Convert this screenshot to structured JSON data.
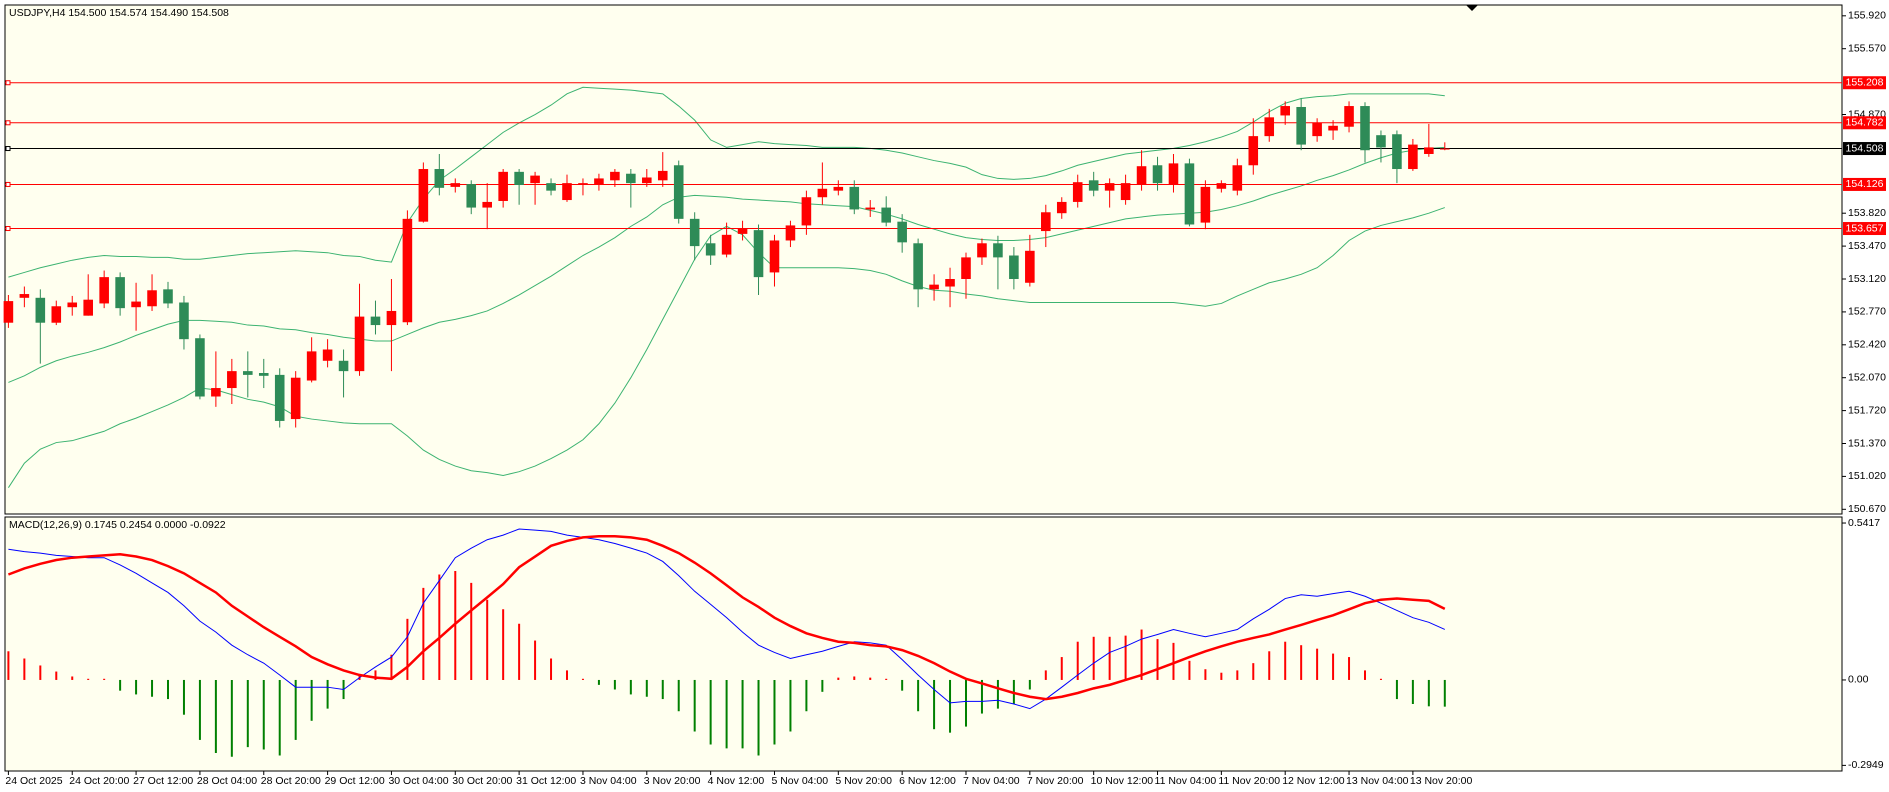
{
  "chart_data": [
    {
      "type": "candlestick",
      "title": "USDJPY,H4  154.500 154.574 154.490 154.508",
      "categories": [
        "24 Oct 2025",
        null,
        null,
        null,
        "24 Oct 20:00",
        null,
        null,
        null,
        "27 Oct 12:00",
        null,
        null,
        null,
        "28 Oct 04:00",
        null,
        null,
        null,
        "28 Oct 20:00",
        null,
        null,
        null,
        "29 Oct 12:00",
        null,
        null,
        null,
        "30 Oct 04:00",
        null,
        null,
        null,
        "30 Oct 20:00",
        null,
        null,
        null,
        "31 Oct 12:00",
        null,
        null,
        null,
        "3 Nov 04:00",
        null,
        null,
        null,
        "3 Nov 20:00",
        null,
        null,
        null,
        "4 Nov 12:00",
        null,
        null,
        null,
        "5 Nov 04:00",
        null,
        null,
        null,
        "5 Nov 20:00",
        null,
        null,
        null,
        "6 Nov 12:00",
        null,
        null,
        null,
        "7 Nov 04:00",
        null,
        null,
        null,
        "7 Nov 20:00",
        null,
        null,
        null,
        "10 Nov 12:00",
        null,
        null,
        null,
        "11 Nov 04:00",
        null,
        null,
        null,
        "11 Nov 20:00",
        null,
        null,
        null,
        "12 Nov 12:00",
        null,
        null,
        null,
        "13 Nov 04:00",
        null,
        null,
        null,
        "13 Nov 20:00",
        null,
        null
      ],
      "open": [
        152.655,
        152.92,
        152.92,
        152.655,
        152.82,
        152.73,
        152.86,
        153.14,
        152.82,
        152.83,
        153.01,
        152.87,
        152.49,
        151.87,
        151.96,
        152.14,
        152.12,
        152.1,
        151.63,
        152.04,
        152.25,
        152.25,
        152.14,
        152.72,
        152.63,
        152.66,
        153.73,
        154.29,
        154.1,
        154.13,
        153.88,
        153.95,
        154.26,
        154.14,
        154.14,
        153.96,
        154.12,
        154.12,
        154.17,
        154.24,
        154.14,
        154.17,
        154.33,
        153.76,
        153.5,
        153.38,
        153.6,
        153.64,
        153.19,
        153.53,
        153.69,
        153.99,
        154.06,
        154.1,
        153.86,
        153.88,
        153.73,
        153.5,
        153.01,
        153.04,
        153.12,
        153.35,
        153.5,
        153.37,
        153.08,
        153.63,
        153.82,
        153.94,
        154.17,
        154.06,
        153.96,
        154.12,
        154.33,
        154.12,
        154.35,
        153.72,
        154.08,
        154.06,
        154.33,
        154.64,
        154.86,
        154.95,
        154.64,
        154.7,
        154.74,
        154.96,
        154.65,
        154.66,
        154.29,
        154.45,
        154.5
      ],
      "high": [
        152.95,
        153.04,
        153.01,
        152.89,
        152.94,
        153.17,
        153.21,
        153.19,
        153.08,
        153.17,
        153.09,
        152.94,
        152.53,
        152.35,
        152.27,
        152.35,
        152.27,
        152.17,
        152.14,
        152.5,
        152.48,
        152.37,
        153.07,
        152.89,
        153.12,
        153.85,
        154.36,
        154.45,
        154.19,
        154.17,
        154.14,
        154.29,
        154.29,
        154.26,
        154.19,
        154.23,
        154.19,
        154.24,
        154.29,
        154.29,
        154.29,
        154.47,
        154.38,
        153.83,
        153.59,
        153.72,
        153.74,
        153.7,
        153.59,
        153.74,
        154.06,
        154.36,
        154.17,
        154.17,
        153.96,
        154.0,
        153.81,
        153.55,
        153.17,
        153.24,
        153.4,
        153.55,
        153.58,
        153.46,
        153.59,
        153.91,
        153.99,
        154.23,
        154.26,
        154.19,
        154.23,
        154.49,
        154.42,
        154.45,
        154.4,
        154.17,
        154.17,
        154.4,
        154.83,
        154.93,
        155.01,
        155.04,
        154.83,
        154.81,
        155.01,
        155.0,
        154.7,
        154.7,
        154.61,
        154.77,
        154.574
      ],
      "low": [
        152.6,
        152.82,
        152.22,
        152.63,
        152.73,
        152.73,
        152.81,
        152.73,
        152.57,
        152.78,
        152.81,
        152.37,
        151.84,
        151.76,
        151.79,
        151.86,
        151.96,
        151.54,
        151.54,
        152.02,
        152.18,
        151.86,
        152.09,
        152.53,
        152.14,
        152.63,
        153.72,
        154.01,
        154.04,
        153.81,
        153.65,
        153.88,
        153.91,
        153.91,
        154.01,
        153.94,
        154.01,
        154.06,
        154.1,
        153.88,
        154.1,
        154.1,
        153.71,
        153.32,
        153.27,
        153.35,
        153.53,
        152.95,
        153.04,
        153.46,
        153.59,
        153.91,
        154.01,
        153.81,
        153.78,
        153.68,
        153.4,
        152.82,
        152.89,
        152.82,
        152.91,
        153.27,
        153.01,
        153.01,
        153.04,
        153.46,
        153.76,
        153.88,
        154.0,
        153.88,
        153.91,
        154.06,
        154.06,
        154.04,
        153.68,
        153.65,
        154.04,
        154.01,
        154.23,
        154.58,
        154.76,
        154.49,
        154.58,
        154.6,
        154.68,
        154.36,
        154.36,
        154.14,
        154.27,
        154.42,
        154.49
      ],
      "close": [
        152.885,
        152.96,
        152.655,
        152.83,
        152.87,
        152.9,
        153.14,
        152.81,
        152.88,
        153.0,
        152.86,
        152.48,
        151.87,
        151.96,
        152.14,
        152.1,
        152.09,
        151.61,
        152.07,
        152.35,
        152.37,
        152.14,
        152.72,
        152.63,
        152.78,
        153.76,
        154.29,
        154.09,
        154.14,
        153.88,
        153.94,
        154.26,
        154.12,
        154.22,
        154.06,
        154.14,
        154.14,
        154.19,
        154.26,
        154.14,
        154.2,
        154.27,
        153.76,
        153.47,
        153.37,
        153.59,
        153.66,
        153.14,
        153.53,
        153.69,
        153.99,
        154.08,
        154.1,
        153.86,
        153.88,
        153.72,
        153.51,
        153.01,
        153.06,
        153.12,
        153.35,
        153.5,
        153.35,
        153.12,
        153.42,
        153.83,
        153.94,
        154.15,
        154.06,
        154.14,
        154.14,
        154.32,
        154.14,
        154.35,
        153.7,
        154.1,
        154.14,
        154.33,
        154.64,
        154.84,
        154.96,
        154.55,
        154.78,
        154.75,
        154.96,
        154.49,
        154.52,
        154.29,
        154.55,
        154.52,
        154.508
      ],
      "up_color": "#ff0000",
      "down_color": "#2e8b57",
      "bands": {
        "color": "#3cb371",
        "upper": [
          153.14,
          153.19,
          153.24,
          153.28,
          153.32,
          153.35,
          153.37,
          153.36,
          153.36,
          153.35,
          153.35,
          153.33,
          153.33,
          153.35,
          153.37,
          153.39,
          153.4,
          153.41,
          153.42,
          153.41,
          153.4,
          153.37,
          153.36,
          153.32,
          153.3,
          153.72,
          153.97,
          154.17,
          154.29,
          154.42,
          154.55,
          154.68,
          154.78,
          154.87,
          154.97,
          155.09,
          155.16,
          155.15,
          155.14,
          155.13,
          155.11,
          155.09,
          154.96,
          154.81,
          154.6,
          154.52,
          154.55,
          154.58,
          154.56,
          154.55,
          154.54,
          154.52,
          154.52,
          154.52,
          154.51,
          154.49,
          154.46,
          154.42,
          154.38,
          154.35,
          154.31,
          154.23,
          154.19,
          154.18,
          154.19,
          154.22,
          154.27,
          154.33,
          154.37,
          154.41,
          154.45,
          154.47,
          154.49,
          154.51,
          154.54,
          154.58,
          154.63,
          154.69,
          154.79,
          154.9,
          154.99,
          155.04,
          155.06,
          155.07,
          155.09,
          155.09,
          155.09,
          155.09,
          155.09,
          155.09,
          155.07
        ],
        "middle": [
          152.02,
          152.09,
          152.18,
          152.25,
          152.3,
          152.34,
          152.39,
          152.45,
          152.52,
          152.58,
          152.64,
          152.68,
          152.68,
          152.67,
          152.66,
          152.63,
          152.62,
          152.59,
          152.58,
          152.55,
          152.53,
          152.5,
          152.48,
          152.46,
          152.46,
          152.53,
          152.6,
          152.66,
          152.69,
          152.73,
          152.78,
          152.86,
          152.95,
          153.05,
          153.15,
          153.26,
          153.37,
          153.46,
          153.56,
          153.68,
          153.78,
          153.91,
          153.99,
          154.01,
          154.0,
          153.99,
          153.97,
          153.96,
          153.95,
          153.94,
          153.92,
          153.91,
          153.9,
          153.89,
          153.85,
          153.81,
          153.76,
          153.7,
          153.65,
          153.6,
          153.56,
          153.54,
          153.53,
          153.53,
          153.54,
          153.56,
          153.6,
          153.64,
          153.68,
          153.72,
          153.76,
          153.78,
          153.8,
          153.81,
          153.82,
          153.83,
          153.86,
          153.9,
          153.95,
          154.01,
          154.06,
          154.11,
          154.17,
          154.22,
          154.28,
          154.35,
          154.41,
          154.46,
          154.49,
          154.51,
          154.52
        ],
        "lower": [
          150.9,
          151.16,
          151.31,
          151.38,
          151.4,
          151.45,
          151.5,
          151.58,
          151.64,
          151.71,
          151.78,
          151.86,
          151.96,
          151.94,
          151.89,
          151.84,
          151.81,
          151.76,
          151.66,
          151.63,
          151.61,
          151.59,
          151.58,
          151.58,
          151.58,
          151.45,
          151.3,
          151.2,
          151.13,
          151.08,
          151.06,
          151.03,
          151.07,
          151.13,
          151.21,
          151.3,
          151.41,
          151.58,
          151.8,
          152.07,
          152.37,
          152.69,
          153.01,
          153.33,
          153.58,
          153.68,
          153.59,
          153.4,
          153.24,
          153.24,
          153.24,
          153.24,
          153.24,
          153.23,
          153.21,
          153.17,
          153.1,
          153.04,
          153.0,
          152.99,
          152.96,
          152.94,
          152.91,
          152.89,
          152.87,
          152.87,
          152.87,
          152.87,
          152.87,
          152.87,
          152.87,
          152.87,
          152.87,
          152.87,
          152.85,
          152.83,
          152.86,
          152.94,
          153.01,
          153.08,
          153.12,
          153.17,
          153.24,
          153.37,
          153.53,
          153.63,
          153.69,
          153.73,
          153.77,
          153.82,
          153.88
        ]
      },
      "levels": [
        155.208,
        154.782,
        154.126,
        153.657
      ],
      "level_color": "#ff0000",
      "last_price": 154.508,
      "last_color": "#000000",
      "ylim": [
        150.62,
        156.035
      ],
      "yticks": [
        {
          "value": 155.92,
          "label": "155.920"
        },
        {
          "value": 155.57,
          "label": "155.570"
        },
        {
          "value": 154.87,
          "label": "154.870"
        },
        {
          "value": 153.82,
          "label": "153.820"
        },
        {
          "value": 153.47,
          "label": "153.470"
        },
        {
          "value": 153.12,
          "label": "153.120"
        },
        {
          "value": 152.77,
          "label": "152.770"
        },
        {
          "value": 152.42,
          "label": "152.420"
        },
        {
          "value": 152.07,
          "label": "152.070"
        },
        {
          "value": 151.72,
          "label": "151.720"
        },
        {
          "value": 151.37,
          "label": "151.370"
        },
        {
          "value": 151.02,
          "label": "151.020"
        },
        {
          "value": 150.67,
          "label": "150.670"
        }
      ]
    },
    {
      "type": "macd",
      "title": "MACD(12,26,9) 0.1745 0.2454 0.0000 -0.0922",
      "histogram": [
        0.099,
        0.074,
        0.05,
        0.029,
        0.012,
        0.004,
        0.004,
        -0.037,
        -0.05,
        -0.058,
        -0.066,
        -0.12,
        -0.207,
        -0.252,
        -0.265,
        -0.232,
        -0.24,
        -0.261,
        -0.207,
        -0.141,
        -0.099,
        -0.066,
        0.021,
        0.033,
        0.087,
        0.211,
        0.318,
        0.364,
        0.376,
        0.335,
        0.277,
        0.244,
        0.194,
        0.136,
        0.074,
        0.033,
        0.004,
        -0.017,
        -0.033,
        -0.05,
        -0.058,
        -0.066,
        -0.108,
        -0.178,
        -0.223,
        -0.236,
        -0.236,
        -0.261,
        -0.223,
        -0.178,
        -0.108,
        -0.041,
        0.008,
        0.012,
        0.008,
        0.004,
        -0.037,
        -0.108,
        -0.17,
        -0.182,
        -0.161,
        -0.116,
        -0.099,
        -0.083,
        -0.033,
        0.033,
        0.079,
        0.132,
        0.149,
        0.149,
        0.153,
        0.174,
        0.141,
        0.128,
        0.066,
        0.037,
        0.025,
        0.033,
        0.058,
        0.099,
        0.132,
        0.12,
        0.108,
        0.091,
        0.079,
        0.033,
        0.004,
        -0.066,
        -0.083,
        -0.091,
        -0.0922
      ],
      "main": [
        0.451,
        0.443,
        0.438,
        0.43,
        0.426,
        0.422,
        0.422,
        0.397,
        0.368,
        0.335,
        0.302,
        0.256,
        0.203,
        0.165,
        0.12,
        0.087,
        0.058,
        0.017,
        -0.025,
        -0.025,
        -0.025,
        -0.033,
        0.008,
        0.045,
        0.079,
        0.149,
        0.265,
        0.343,
        0.422,
        0.455,
        0.484,
        0.5,
        0.521,
        0.517,
        0.513,
        0.5,
        0.492,
        0.484,
        0.471,
        0.455,
        0.438,
        0.409,
        0.36,
        0.306,
        0.261,
        0.215,
        0.165,
        0.12,
        0.095,
        0.074,
        0.087,
        0.099,
        0.116,
        0.132,
        0.128,
        0.12,
        0.07,
        0.017,
        -0.033,
        -0.079,
        -0.074,
        -0.074,
        -0.07,
        -0.083,
        -0.099,
        -0.066,
        -0.025,
        0.017,
        0.058,
        0.095,
        0.116,
        0.141,
        0.157,
        0.174,
        0.161,
        0.149,
        0.161,
        0.174,
        0.211,
        0.244,
        0.281,
        0.294,
        0.289,
        0.298,
        0.306,
        0.289,
        0.265,
        0.24,
        0.215,
        0.199,
        0.1745
      ],
      "signal": [
        0.364,
        0.385,
        0.401,
        0.414,
        0.422,
        0.426,
        0.43,
        0.434,
        0.426,
        0.414,
        0.393,
        0.368,
        0.335,
        0.302,
        0.256,
        0.219,
        0.182,
        0.149,
        0.116,
        0.079,
        0.054,
        0.033,
        0.017,
        0.008,
        0.004,
        0.045,
        0.099,
        0.145,
        0.194,
        0.24,
        0.285,
        0.331,
        0.389,
        0.426,
        0.463,
        0.48,
        0.492,
        0.496,
        0.496,
        0.492,
        0.484,
        0.463,
        0.438,
        0.405,
        0.368,
        0.327,
        0.285,
        0.252,
        0.215,
        0.186,
        0.161,
        0.145,
        0.132,
        0.128,
        0.12,
        0.116,
        0.103,
        0.083,
        0.058,
        0.029,
        0.004,
        -0.012,
        -0.029,
        -0.045,
        -0.058,
        -0.066,
        -0.058,
        -0.045,
        -0.029,
        -0.017,
        0.0,
        0.017,
        0.037,
        0.058,
        0.079,
        0.099,
        0.116,
        0.132,
        0.145,
        0.157,
        0.174,
        0.19,
        0.207,
        0.223,
        0.244,
        0.265,
        0.277,
        0.281,
        0.277,
        0.273,
        0.2454
      ],
      "main_color": "#0000ff",
      "signal_color": "#ff0000",
      "pos_color": "#ff0000",
      "neg_color": "#008000",
      "ylim": [
        -0.3143,
        0.5625
      ],
      "yticks": [
        0.5417,
        {
          "value": 0,
          "label": "0.00"
        },
        -0.2949
      ]
    }
  ]
}
